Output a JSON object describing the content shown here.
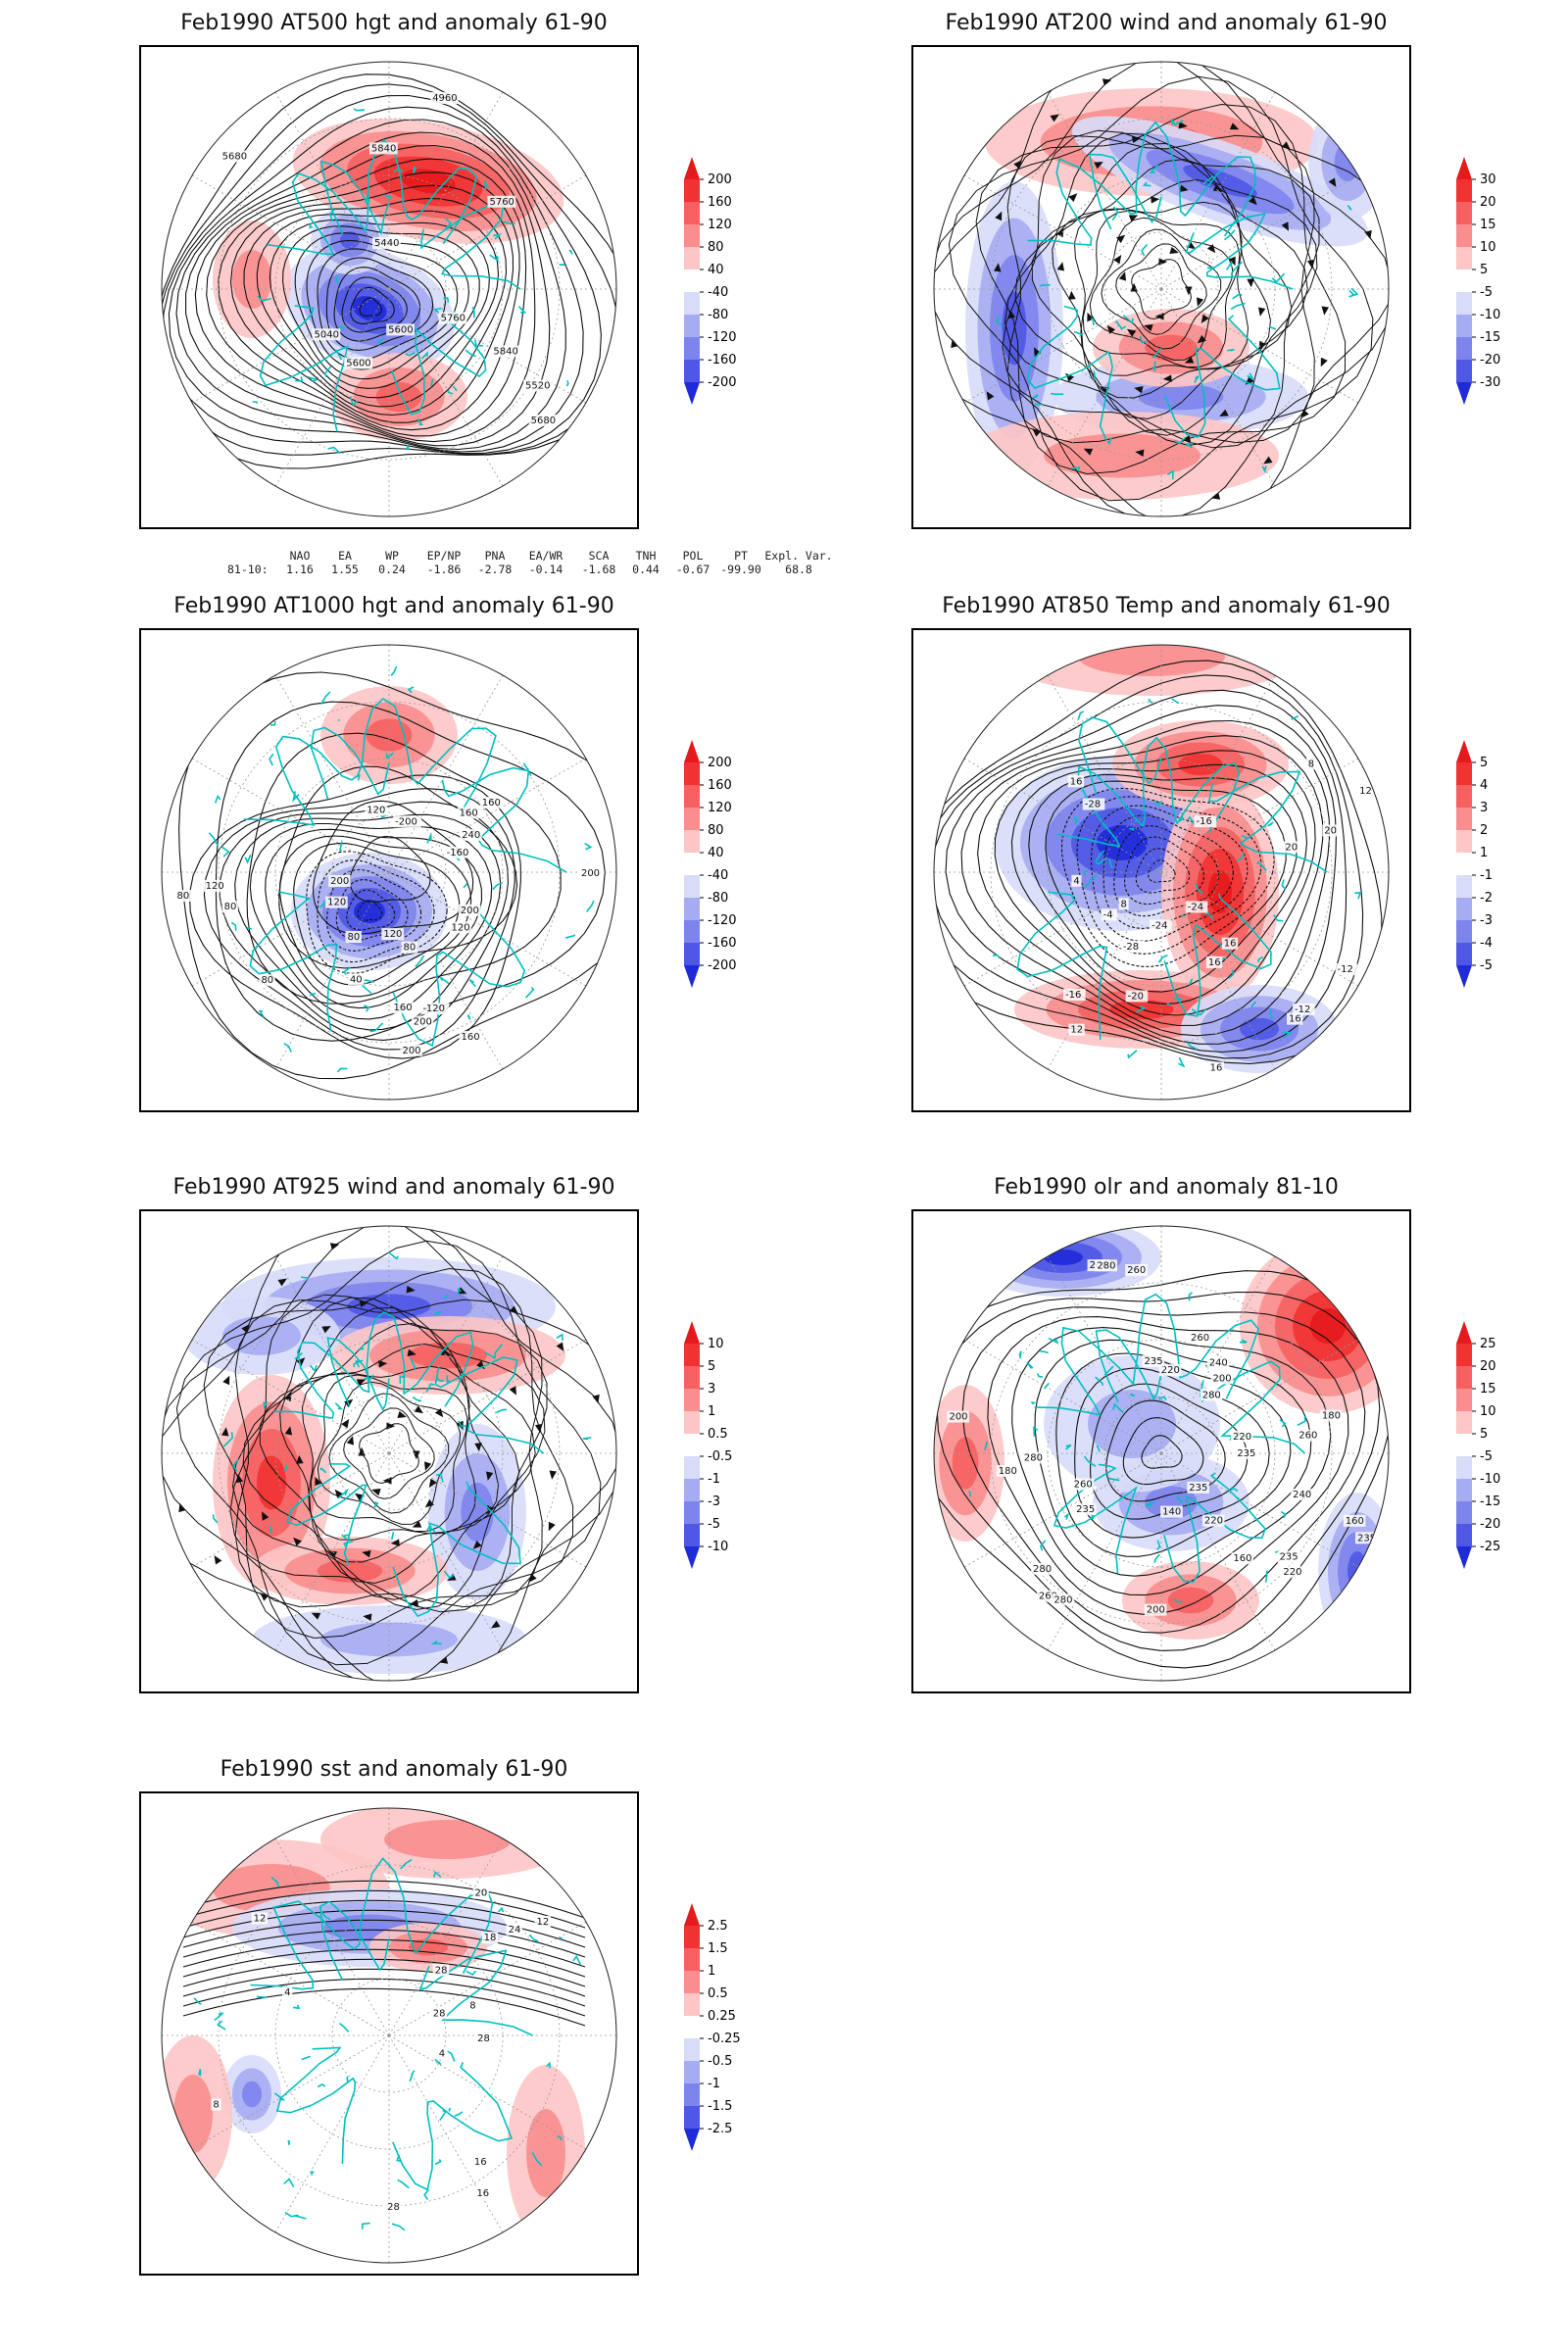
{
  "panels": [
    {
      "title": "Feb1990 AT500 hgt and anomaly 61-90",
      "colorbar": [
        "200",
        "160",
        "120",
        "80",
        "40",
        "-40",
        "-80",
        "-120",
        "-160",
        "-200"
      ],
      "contour_labels": [
        "5840",
        "5760",
        "5680",
        "5600",
        "5040",
        "4960",
        "5520",
        "5440",
        "5600",
        "5680",
        "5760",
        "5840"
      ]
    },
    {
      "title": "Feb1990 AT200 wind and anomaly 61-90",
      "colorbar": [
        "30",
        "20",
        "15",
        "10",
        "5",
        "-5",
        "-10",
        "-15",
        "-20",
        "-30"
      ],
      "contour_labels": []
    },
    {
      "title": "Feb1990 AT1000 hgt and anomaly 61-90",
      "colorbar": [
        "200",
        "160",
        "120",
        "80",
        "40",
        "-40",
        "-80",
        "-120",
        "-160",
        "-200"
      ],
      "contour_labels": [
        "80",
        "80",
        "120",
        "160",
        "200",
        "200",
        "120",
        "200",
        "40",
        "80",
        "160",
        "240",
        "120",
        "160",
        "-120",
        "-160",
        "-200",
        "120",
        "200",
        "160",
        "200",
        "120",
        "80",
        "80"
      ]
    },
    {
      "title": "Feb1990 AT850 Temp and anomaly 61-90",
      "colorbar": [
        "5",
        "4",
        "3",
        "2",
        "1",
        "-1",
        "-2",
        "-3",
        "-4",
        "-5"
      ],
      "contour_labels": [
        "12",
        "8",
        "4",
        "16",
        "-24",
        "-28",
        "-12",
        "-16",
        "-20",
        "-24",
        "-28",
        "-16",
        "-12",
        "-4",
        "16",
        "20",
        "8",
        "12",
        "16",
        "16",
        "16",
        "20"
      ]
    },
    {
      "title": "Feb1990 AT925 wind and anomaly 61-90",
      "colorbar": [
        "10",
        "5",
        "3",
        "1",
        "0.5",
        "-0.5",
        "-1",
        "-3",
        "-5",
        "-10"
      ],
      "contour_labels": []
    },
    {
      "title": "Feb1990 olr and anomaly 81-10",
      "colorbar": [
        "25",
        "20",
        "15",
        "10",
        "5",
        "-5",
        "-10",
        "-15",
        "-20",
        "-25"
      ],
      "contour_labels": [
        "235",
        "260",
        "240",
        "280",
        "260",
        "240",
        "235",
        "220",
        "200",
        "160",
        "180",
        "200",
        "235",
        "280",
        "260",
        "235",
        "220",
        "200",
        "180",
        "160",
        "140",
        "260",
        "280",
        "220",
        "200",
        "235",
        "280",
        "260",
        "220",
        "235",
        "280"
      ]
    },
    {
      "title": "Feb1990 sst and anomaly 61-90",
      "colorbar": [
        "2.5",
        "1.5",
        "1",
        "0.5",
        "0.25",
        "-0.25",
        "-0.5",
        "-1",
        "-1.5",
        "-2.5"
      ],
      "contour_labels": [
        "28",
        "24",
        "20",
        "16",
        "12",
        "8",
        "4",
        "28",
        "28",
        "8",
        "4",
        "12",
        "16",
        "18",
        "28"
      ]
    }
  ],
  "index_table": {
    "header": [
      "NAO",
      "EA",
      "WP",
      "EP/NP",
      "PNA",
      "EA/WR",
      "SCA",
      "TNH",
      "POL",
      "PT",
      "Expl. Var."
    ],
    "row_label": "81-10:",
    "values": [
      "1.16",
      "1.55",
      "0.24",
      "-1.86",
      "-2.78",
      "-0.14",
      "-1.68",
      "0.44",
      "-0.67",
      "-99.90",
      "68.8"
    ]
  },
  "colors": {
    "positive_scale": [
      "#e41a1c",
      "#f03232",
      "#f66060",
      "#fa8e8e",
      "#fdc5c5"
    ],
    "negative_scale": [
      "#d8dcf8",
      "#a6acf2",
      "#7d84ec",
      "#4f58e4",
      "#1f2ad8"
    ],
    "coastline": "#00c0c0",
    "contour": "#111111"
  }
}
